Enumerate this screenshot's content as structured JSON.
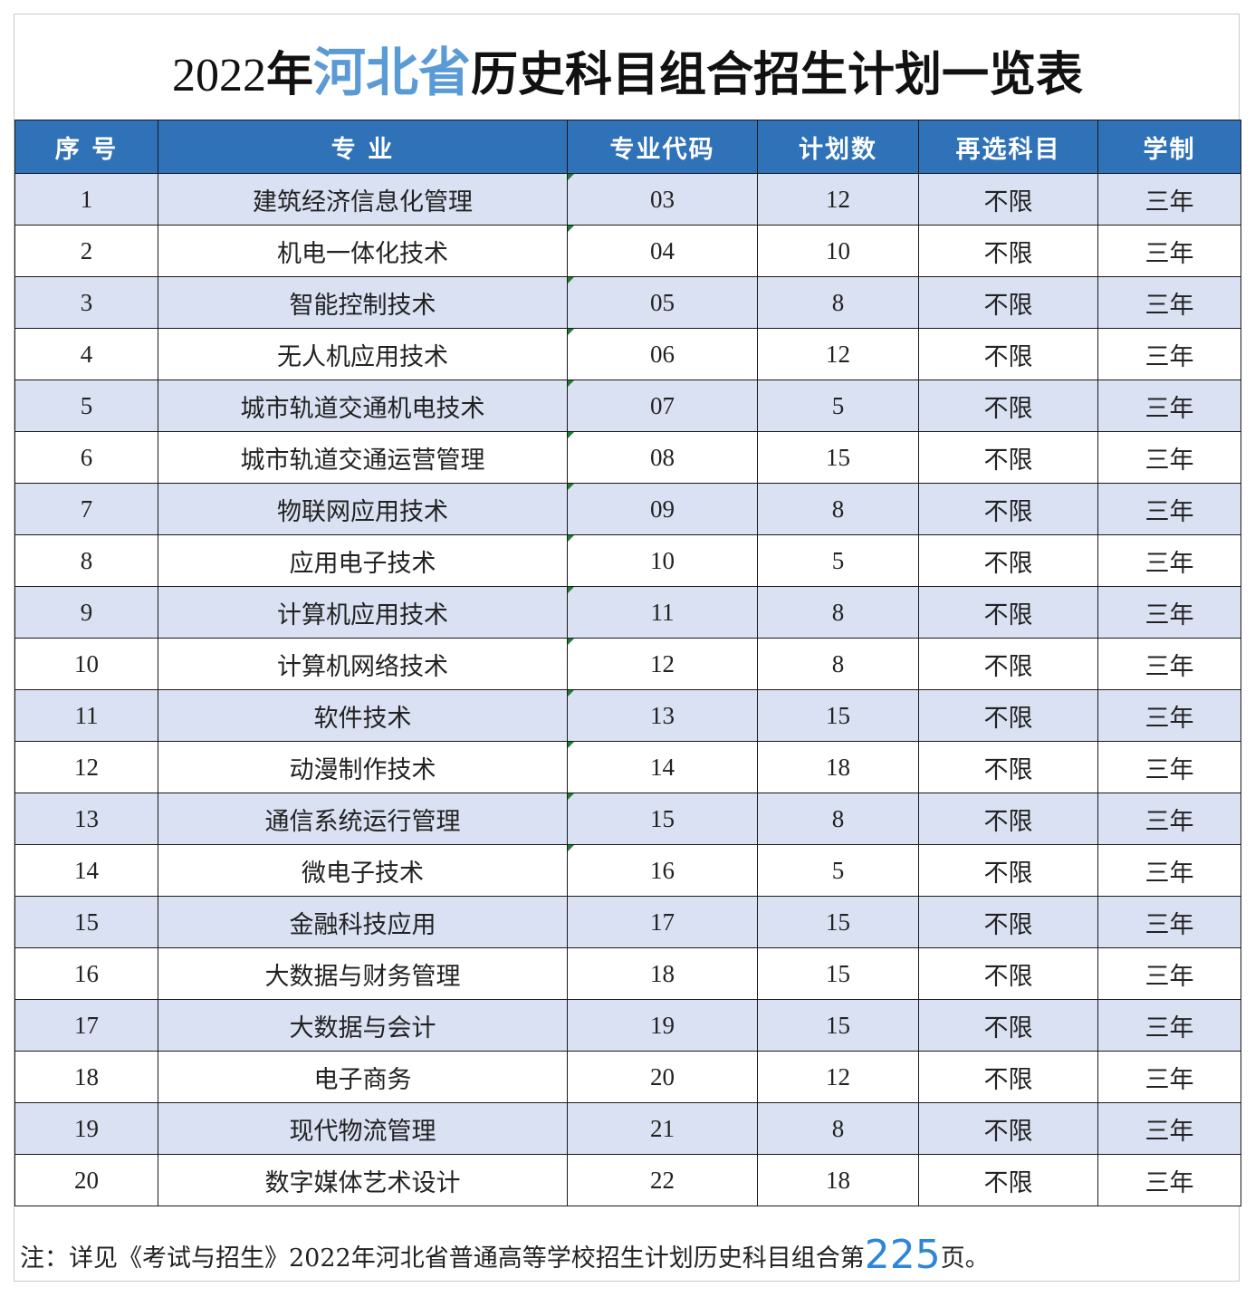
{
  "title": {
    "year": "2022",
    "part1": "年",
    "province": "河北省",
    "part2": "历史科目组合招生计划一览表"
  },
  "table": {
    "headers": [
      "序 号",
      "专 业",
      "专业代码",
      "计划数",
      "再选科目",
      "学制"
    ],
    "rows": [
      [
        "1",
        "建筑经济信息化管理",
        "03",
        "12",
        "不限",
        "三年"
      ],
      [
        "2",
        "机电一体化技术",
        "04",
        "10",
        "不限",
        "三年"
      ],
      [
        "3",
        "智能控制技术",
        "05",
        "8",
        "不限",
        "三年"
      ],
      [
        "4",
        "无人机应用技术",
        "06",
        "12",
        "不限",
        "三年"
      ],
      [
        "5",
        "城市轨道交通机电技术",
        "07",
        "5",
        "不限",
        "三年"
      ],
      [
        "6",
        "城市轨道交通运营管理",
        "08",
        "15",
        "不限",
        "三年"
      ],
      [
        "7",
        "物联网应用技术",
        "09",
        "8",
        "不限",
        "三年"
      ],
      [
        "8",
        "应用电子技术",
        "10",
        "5",
        "不限",
        "三年"
      ],
      [
        "9",
        "计算机应用技术",
        "11",
        "8",
        "不限",
        "三年"
      ],
      [
        "10",
        "计算机网络技术",
        "12",
        "8",
        "不限",
        "三年"
      ],
      [
        "11",
        "软件技术",
        "13",
        "15",
        "不限",
        "三年"
      ],
      [
        "12",
        "动漫制作技术",
        "14",
        "18",
        "不限",
        "三年"
      ],
      [
        "13",
        "通信系统运行管理",
        "15",
        "8",
        "不限",
        "三年"
      ],
      [
        "14",
        "微电子技术",
        "16",
        "5",
        "不限",
        "三年"
      ],
      [
        "15",
        "金融科技应用",
        "17",
        "15",
        "不限",
        "三年"
      ],
      [
        "16",
        "大数据与财务管理",
        "18",
        "15",
        "不限",
        "三年"
      ],
      [
        "17",
        "大数据与会计",
        "19",
        "15",
        "不限",
        "三年"
      ],
      [
        "18",
        "电子商务",
        "20",
        "12",
        "不限",
        "三年"
      ],
      [
        "19",
        "现代物流管理",
        "21",
        "8",
        "不限",
        "三年"
      ],
      [
        "20",
        "数字媒体艺术设计",
        "22",
        "18",
        "不限",
        "三年"
      ]
    ]
  },
  "note": {
    "prefix": "注：详见《考试与招生》2022年河北省普通高等学校招生计划历史科目组合第",
    "page": "225",
    "suffix": "页。"
  },
  "colors": {
    "header_bg": "#2f72b7",
    "stripe_bg": "#dae1f3",
    "province_text": "#5b9bd5",
    "page_number": "#2f86d6",
    "marker": "#1e7d32"
  }
}
